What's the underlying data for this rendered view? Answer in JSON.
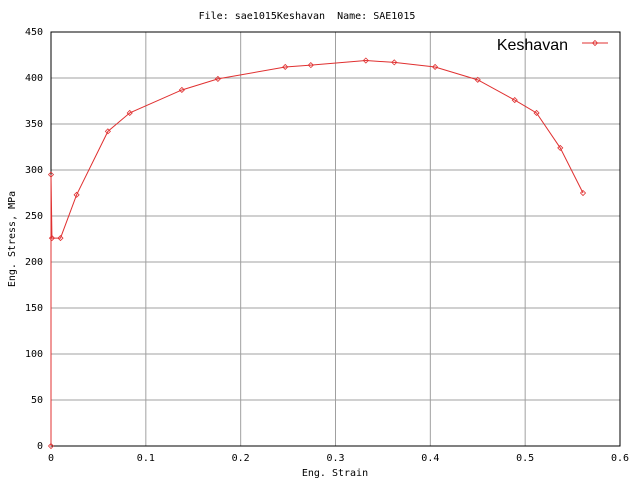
{
  "chart_data": {
    "type": "line",
    "title": "File: sae1015Keshavan  Name: SAE1015",
    "x_label": "Eng. Strain",
    "y_label": "Eng. Stress, MPa",
    "x": [
      0,
      0,
      0.001,
      0.01,
      0.027,
      0.06,
      0.083,
      0.138,
      0.176,
      0.247,
      0.274,
      0.332,
      0.362,
      0.405,
      0.45,
      0.489,
      0.512,
      0.537,
      0.561
    ],
    "series": [
      {
        "name": "Keshavan",
        "color": "#e03030",
        "values": [
          0,
          295,
          226,
          226,
          273,
          342,
          362,
          387,
          399,
          412,
          414,
          419,
          417,
          412,
          398,
          376,
          362,
          324,
          275
        ]
      }
    ],
    "xlim": [
      0,
      0.6
    ],
    "xticks": [
      0,
      0.1,
      0.2,
      0.3,
      0.4,
      0.5,
      0.6
    ],
    "ylim": [
      0,
      450
    ],
    "yticks": [
      0,
      50,
      100,
      150,
      200,
      250,
      300,
      350,
      400,
      450
    ],
    "grid": true,
    "legend_position": "top-right"
  }
}
